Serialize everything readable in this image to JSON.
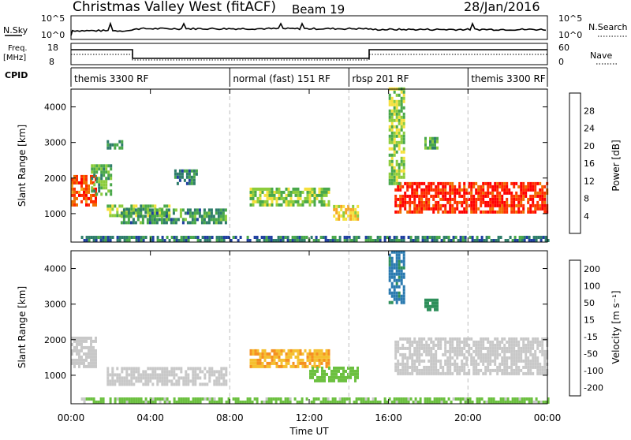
{
  "header": {
    "station": "Christmas Valley West (fitACF)",
    "beam": "Beam 19",
    "date": "28/Jan/2016"
  },
  "top_panels": {
    "nsky_label": "N.Sky",
    "nsky_ticks": [
      "10^5",
      "10^0"
    ],
    "nsearch_label": "N.Search",
    "nsearch_ticks": [
      "10^5",
      "10^0"
    ],
    "freq_label": "Freq.",
    "freq_unit": "[MHz]",
    "freq_ticks": [
      "18",
      "8"
    ],
    "nave_label": "Nave",
    "nave_ticks": [
      "60",
      "0"
    ],
    "cpid_label": "CPID",
    "cpid_segments": [
      {
        "label": "themis 3300 RF",
        "start": 0,
        "end": 8
      },
      {
        "label": "normal (fast) 151 RF",
        "start": 8,
        "end": 14
      },
      {
        "label": "rbsp 201 RF",
        "start": 14,
        "end": 20
      },
      {
        "label": "themis 3300 RF",
        "start": 20,
        "end": 24
      }
    ]
  },
  "power_panel": {
    "ylabel": "Slant Range [km]",
    "colorbar_label": "Power [dB]",
    "colorbar_ticks": [
      "28",
      "24",
      "20",
      "16",
      "12",
      "8",
      "4"
    ],
    "colors": [
      "#0000ff",
      "#1f3fa0",
      "#2e7d6a",
      "#49a84a",
      "#8ccc3c",
      "#f5e03c",
      "#f5a623",
      "#f07000",
      "#ff3000",
      "#ff0000"
    ]
  },
  "velocity_panel": {
    "ylabel": "Slant Range [km]",
    "colorbar_label": "Velocity [m s⁻¹]",
    "colorbar_ticks": [
      "200",
      "100",
      "50",
      "15",
      "-15",
      "-50",
      "-100",
      "-200"
    ],
    "colors": [
      "#1f3fd0",
      "#2a7ab0",
      "#2e8f5a",
      "#6cc040",
      "#c8c8c8",
      "#f5c030",
      "#f59020",
      "#f06010",
      "#ff2000"
    ]
  },
  "x_axis": {
    "xlabel": "Time UT",
    "ticks": [
      "00:00",
      "04:00",
      "08:00",
      "12:00",
      "16:00",
      "20:00",
      "00:00"
    ]
  },
  "chart_data": [
    {
      "type": "heatmap",
      "title": "Power",
      "xlabel": "",
      "ylabel": "Slant Range [km]",
      "xlim": [
        0,
        24
      ],
      "ylim": [
        200,
        4500
      ],
      "yticks": [
        1000,
        2000,
        3000,
        4000
      ],
      "colorbar": "Power [dB]",
      "cmin": 0,
      "cmax": 32,
      "regions": [
        {
          "t0": 0.0,
          "t1": 1.2,
          "r0": 1200,
          "r1": 2000,
          "level": 26
        },
        {
          "t0": 1.0,
          "t1": 2.0,
          "r0": 1500,
          "r1": 2300,
          "level": 12
        },
        {
          "t0": 1.8,
          "t1": 5.0,
          "r0": 900,
          "r1": 1250,
          "level": 13
        },
        {
          "t0": 2.5,
          "t1": 7.8,
          "r0": 700,
          "r1": 1100,
          "level": 10
        },
        {
          "t0": 1.8,
          "t1": 2.6,
          "r0": 2800,
          "r1": 3000,
          "level": 10
        },
        {
          "t0": 5.2,
          "t1": 6.3,
          "r0": 1800,
          "r1": 2200,
          "level": 9
        },
        {
          "t0": 9.0,
          "t1": 13.0,
          "r0": 1200,
          "r1": 1700,
          "level": 14
        },
        {
          "t0": 13.2,
          "t1": 14.5,
          "r0": 800,
          "r1": 1200,
          "level": 18
        },
        {
          "t0": 16.3,
          "t1": 24.0,
          "r0": 1000,
          "r1": 1800,
          "level": 28
        },
        {
          "t0": 16.0,
          "t1": 16.8,
          "r0": 1800,
          "r1": 4500,
          "level": 14
        },
        {
          "t0": 17.8,
          "t1": 18.4,
          "r0": 2800,
          "r1": 3100,
          "level": 12
        },
        {
          "t0": 0.5,
          "t1": 24.0,
          "r0": 200,
          "r1": 350,
          "level": 8
        }
      ]
    },
    {
      "type": "heatmap",
      "title": "Velocity",
      "xlabel": "Time UT",
      "ylabel": "Slant Range [km]",
      "xlim": [
        0,
        24
      ],
      "ylim": [
        200,
        4500
      ],
      "yticks": [
        1000,
        2000,
        3000,
        4000
      ],
      "colorbar": "Velocity [m s⁻¹]",
      "cmin": -250,
      "cmax": 250,
      "regions": [
        {
          "t0": 0.0,
          "t1": 1.2,
          "r0": 1200,
          "r1": 2000,
          "level": 0
        },
        {
          "t0": 1.8,
          "t1": 7.8,
          "r0": 700,
          "r1": 1200,
          "level": -5
        },
        {
          "t0": 9.0,
          "t1": 13.0,
          "r0": 1200,
          "r1": 1650,
          "level": 80
        },
        {
          "t0": 12.0,
          "t1": 14.5,
          "r0": 800,
          "r1": 1200,
          "level": -60
        },
        {
          "t0": 16.3,
          "t1": 24.0,
          "r0": 1000,
          "r1": 2000,
          "level": 0
        },
        {
          "t0": 16.0,
          "t1": 16.8,
          "r0": 3000,
          "r1": 4500,
          "level": -150
        },
        {
          "t0": 17.8,
          "t1": 18.4,
          "r0": 2800,
          "r1": 3100,
          "level": -120
        },
        {
          "t0": 0.5,
          "t1": 24.0,
          "r0": 200,
          "r1": 350,
          "level": -40
        }
      ]
    }
  ]
}
